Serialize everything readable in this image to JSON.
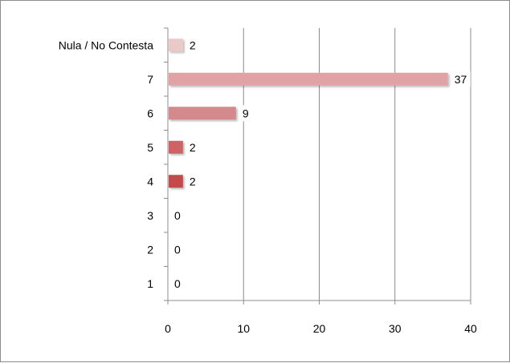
{
  "chart_data": {
    "type": "bar",
    "orientation": "horizontal",
    "categories": [
      "Nula / No Contesta",
      "7",
      "6",
      "5",
      "4",
      "3",
      "2",
      "1"
    ],
    "values": [
      2,
      37,
      9,
      2,
      2,
      0,
      0,
      0
    ],
    "bar_colors": [
      "#ecc9c9",
      "#dfa3a5",
      "#d48a8c",
      "#cf6264",
      "#c44a4c",
      "#c44a4c",
      "#c44a4c",
      "#c44a4c"
    ],
    "xlim": [
      0,
      40
    ],
    "x_ticks": [
      0,
      10,
      20,
      30,
      40
    ],
    "grid": true,
    "data_labels": true,
    "legend": "none"
  }
}
